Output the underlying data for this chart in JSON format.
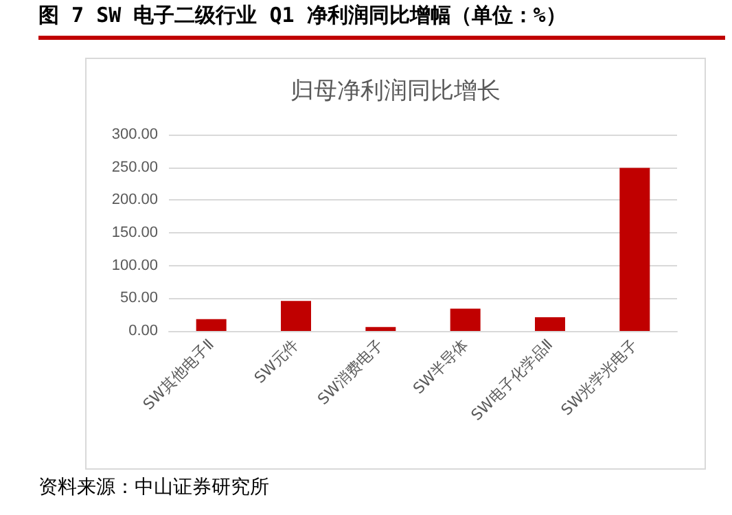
{
  "chart_data": {
    "type": "bar",
    "title": "图 7 SW 电子二级行业 Q1 净利润同比增幅（单位：%）",
    "subtitle": "归母净利润同比增长",
    "categories": [
      "SW其他电子Ⅱ",
      "SW元件",
      "SW消费电子",
      "SW半导体",
      "SW电子化学品Ⅱ",
      "SW光学光电子"
    ],
    "values": [
      18,
      46,
      6,
      34,
      21,
      249
    ],
    "color": "#c00000",
    "ylim": [
      0,
      300
    ],
    "yticks": [
      {
        "value": 0,
        "label": "0.00"
      },
      {
        "value": 50,
        "label": "50.00"
      },
      {
        "value": 100,
        "label": "100.00"
      },
      {
        "value": 150,
        "label": "150.00"
      },
      {
        "value": 200,
        "label": "200.00"
      },
      {
        "value": 250,
        "label": "250.00"
      },
      {
        "value": 300,
        "label": "300.00"
      }
    ],
    "grid": "y",
    "annotations": [
      "资料来源：中山证券研究所"
    ]
  }
}
